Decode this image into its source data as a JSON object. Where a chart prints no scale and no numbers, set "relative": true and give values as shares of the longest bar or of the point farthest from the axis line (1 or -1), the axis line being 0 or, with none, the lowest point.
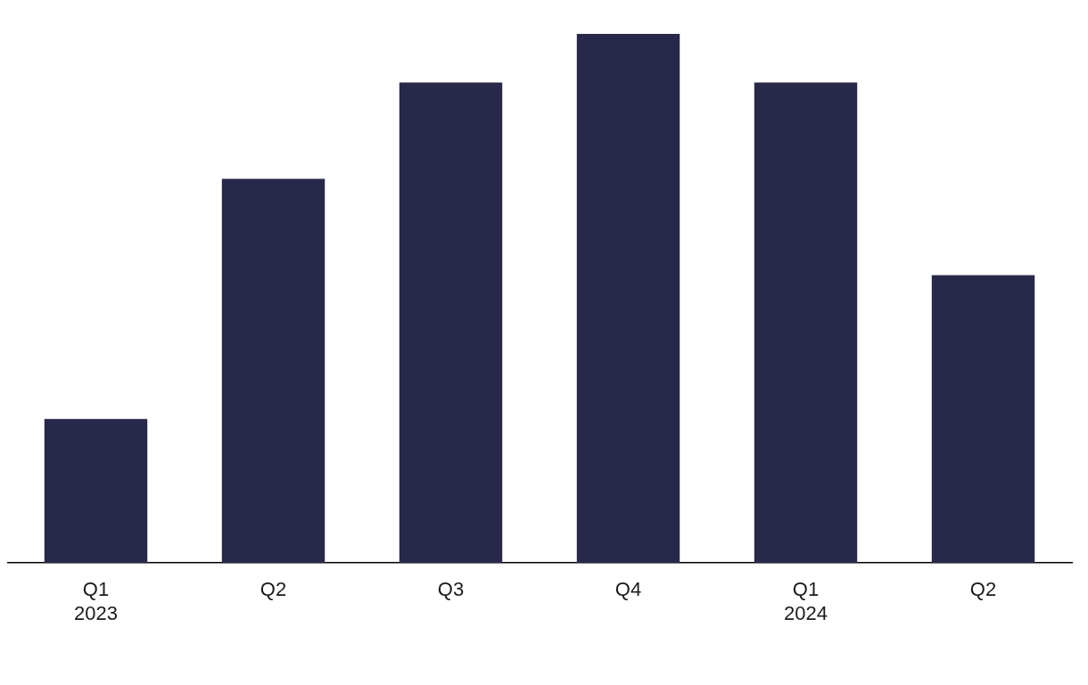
{
  "chart_data": {
    "type": "bar",
    "relative": true,
    "categories": [
      "Q1\n2023",
      "Q2",
      "Q3",
      "Q4",
      "Q1\n2024",
      "Q2"
    ],
    "series": [
      {
        "color": "#28284a",
        "values": [
          0.272,
          0.726,
          0.908,
          1,
          0.908,
          0.544
        ]
      }
    ],
    "grid": false,
    "legend": false
  }
}
